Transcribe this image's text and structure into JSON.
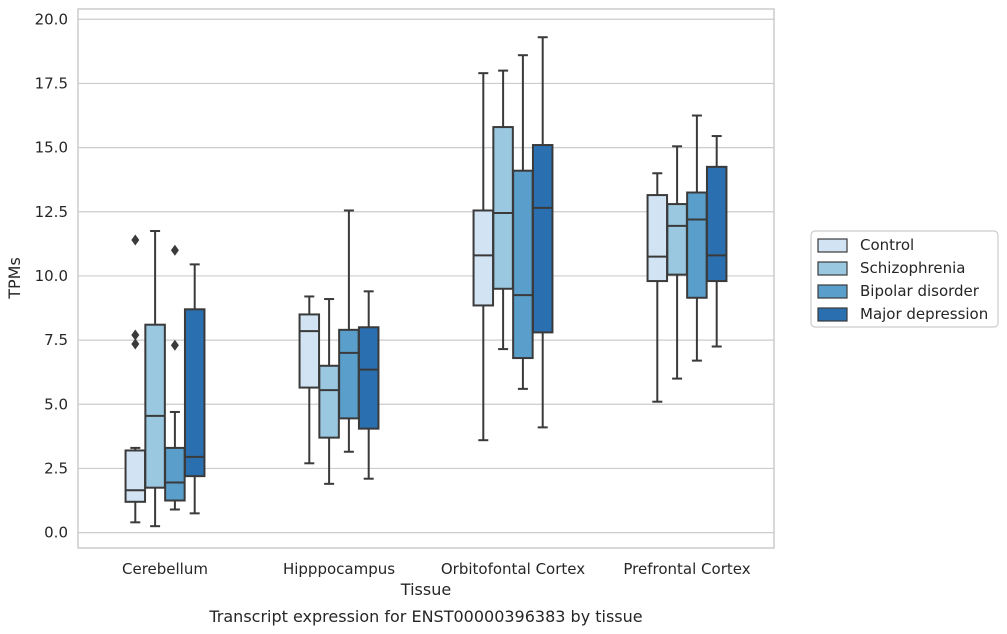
{
  "chart_data": {
    "type": "box",
    "title": "",
    "caption": "Transcript expression for ENST00000396383 by tissue",
    "xlabel": "Tissue",
    "ylabel": "TPMs",
    "ylim": [
      -0.6,
      20.4
    ],
    "yticks": [
      "0.0",
      "2.5",
      "5.0",
      "7.5",
      "10.0",
      "12.5",
      "15.0",
      "17.5",
      "20.0"
    ],
    "categories": [
      "Cerebellum",
      "Hipppocampus",
      "Orbitofontal Cortex",
      "Prefrontal Cortex"
    ],
    "grid": true,
    "legend_position": "right",
    "series": [
      {
        "name": "Control",
        "color": "#d2e3f3",
        "boxes": [
          {
            "whislo": 0.4,
            "q1": 1.2,
            "med": 1.65,
            "q3": 3.2,
            "whishi": 3.3,
            "fliers": [
              11.4,
              7.7,
              7.35
            ]
          },
          {
            "whislo": 2.7,
            "q1": 5.65,
            "med": 7.85,
            "q3": 8.5,
            "whishi": 9.2,
            "fliers": []
          },
          {
            "whislo": 3.6,
            "q1": 8.85,
            "med": 10.8,
            "q3": 12.55,
            "whishi": 17.9,
            "fliers": []
          },
          {
            "whislo": 5.1,
            "q1": 9.8,
            "med": 10.75,
            "q3": 13.15,
            "whishi": 14.0,
            "fliers": []
          }
        ]
      },
      {
        "name": "Schizophrenia",
        "color": "#9ac8e0",
        "boxes": [
          {
            "whislo": 0.25,
            "q1": 1.75,
            "med": 4.55,
            "q3": 8.1,
            "whishi": 11.75,
            "fliers": []
          },
          {
            "whislo": 1.9,
            "q1": 3.7,
            "med": 5.55,
            "q3": 6.5,
            "whishi": 9.1,
            "fliers": []
          },
          {
            "whislo": 7.15,
            "q1": 9.5,
            "med": 12.45,
            "q3": 15.8,
            "whishi": 18.0,
            "fliers": []
          },
          {
            "whislo": 6.0,
            "q1": 10.05,
            "med": 11.95,
            "q3": 12.8,
            "whishi": 15.05,
            "fliers": []
          }
        ]
      },
      {
        "name": "Bipolar disorder",
        "color": "#5a9fcc",
        "boxes": [
          {
            "whislo": 0.9,
            "q1": 1.25,
            "med": 1.95,
            "q3": 3.3,
            "whishi": 4.7,
            "fliers": [
              11.0,
              7.3
            ]
          },
          {
            "whislo": 3.15,
            "q1": 4.45,
            "med": 7.0,
            "q3": 7.9,
            "whishi": 12.55,
            "fliers": []
          },
          {
            "whislo": 5.6,
            "q1": 6.8,
            "med": 9.25,
            "q3": 14.1,
            "whishi": 18.6,
            "fliers": []
          },
          {
            "whislo": 6.7,
            "q1": 9.15,
            "med": 12.2,
            "q3": 13.25,
            "whishi": 16.25,
            "fliers": []
          }
        ]
      },
      {
        "name": "Major depression",
        "color": "#2a6fb0",
        "boxes": [
          {
            "whislo": 0.75,
            "q1": 2.2,
            "med": 2.95,
            "q3": 8.7,
            "whishi": 10.45,
            "fliers": []
          },
          {
            "whislo": 2.1,
            "q1": 4.05,
            "med": 6.35,
            "q3": 8.0,
            "whishi": 9.4,
            "fliers": []
          },
          {
            "whislo": 4.1,
            "q1": 7.8,
            "med": 12.65,
            "q3": 15.1,
            "whishi": 19.3,
            "fliers": []
          },
          {
            "whislo": 7.25,
            "q1": 9.8,
            "med": 10.8,
            "q3": 14.25,
            "whishi": 15.45,
            "fliers": []
          }
        ]
      }
    ]
  }
}
